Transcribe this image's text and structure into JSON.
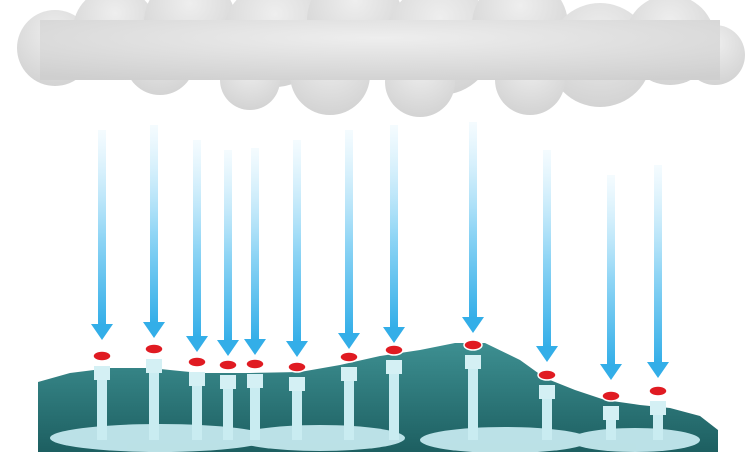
{
  "caption": "",
  "colors": {
    "cloud": "#d9d9d9",
    "cloud_shade": "#bdbdbd",
    "arrow_light": "#e8f6fd",
    "arrow_dark": "#3cb4ea",
    "terrain_top": "#3a8a8d",
    "terrain_bottom": "#1f6466",
    "shaft": "#cfeef2",
    "pool": "#bfe6ec",
    "marker": "#e01b22"
  },
  "arrows": 12,
  "sinkholes": 12
}
